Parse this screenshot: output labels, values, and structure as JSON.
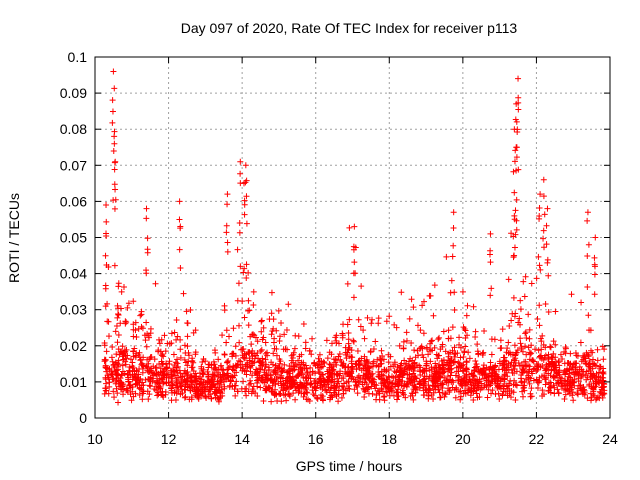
{
  "chart_data": {
    "type": "scatter",
    "title": "Day 097 of 2020, Rate Of TEC Index for receiver p113",
    "xlabel": "GPS time / hours",
    "ylabel": "ROTI / TECUs",
    "xlim": [
      10,
      24
    ],
    "ylim": [
      0,
      0.1
    ],
    "xticks": [
      10,
      12,
      14,
      16,
      18,
      20,
      22,
      24
    ],
    "yticks": [
      0,
      0.01,
      0.02,
      0.03,
      0.04,
      0.05,
      0.06,
      0.07,
      0.08,
      0.09,
      0.1
    ],
    "xtick_labels": [
      "10",
      "12",
      "14",
      "16",
      "18",
      "20",
      "22",
      "24"
    ],
    "ytick_labels": [
      "0",
      "0.01",
      "0.02",
      "0.03",
      "0.04",
      "0.05",
      "0.06",
      "0.07",
      "0.08",
      "0.09",
      "0.1"
    ],
    "grid": true,
    "marker": "plus",
    "color": "#ff0000",
    "x_start": 10.25,
    "x_end": 23.85,
    "spikes": [
      {
        "x": 10.3,
        "y": 0.059
      },
      {
        "x": 10.5,
        "y": 0.096
      },
      {
        "x": 10.52,
        "y": 0.078
      },
      {
        "x": 10.55,
        "y": 0.071
      },
      {
        "x": 11.4,
        "y": 0.058
      },
      {
        "x": 12.3,
        "y": 0.06
      },
      {
        "x": 13.6,
        "y": 0.062
      },
      {
        "x": 13.95,
        "y": 0.071
      },
      {
        "x": 14.1,
        "y": 0.07
      },
      {
        "x": 14.05,
        "y": 0.065
      },
      {
        "x": 17.05,
        "y": 0.053
      },
      {
        "x": 19.75,
        "y": 0.057
      },
      {
        "x": 20.75,
        "y": 0.051
      },
      {
        "x": 21.5,
        "y": 0.094
      },
      {
        "x": 21.45,
        "y": 0.087
      },
      {
        "x": 21.4,
        "y": 0.08
      },
      {
        "x": 21.45,
        "y": 0.075
      },
      {
        "x": 21.4,
        "y": 0.056
      },
      {
        "x": 22.2,
        "y": 0.066
      },
      {
        "x": 22.1,
        "y": 0.062
      },
      {
        "x": 22.3,
        "y": 0.058
      },
      {
        "x": 23.4,
        "y": 0.057
      },
      {
        "x": 23.6,
        "y": 0.05
      }
    ]
  }
}
